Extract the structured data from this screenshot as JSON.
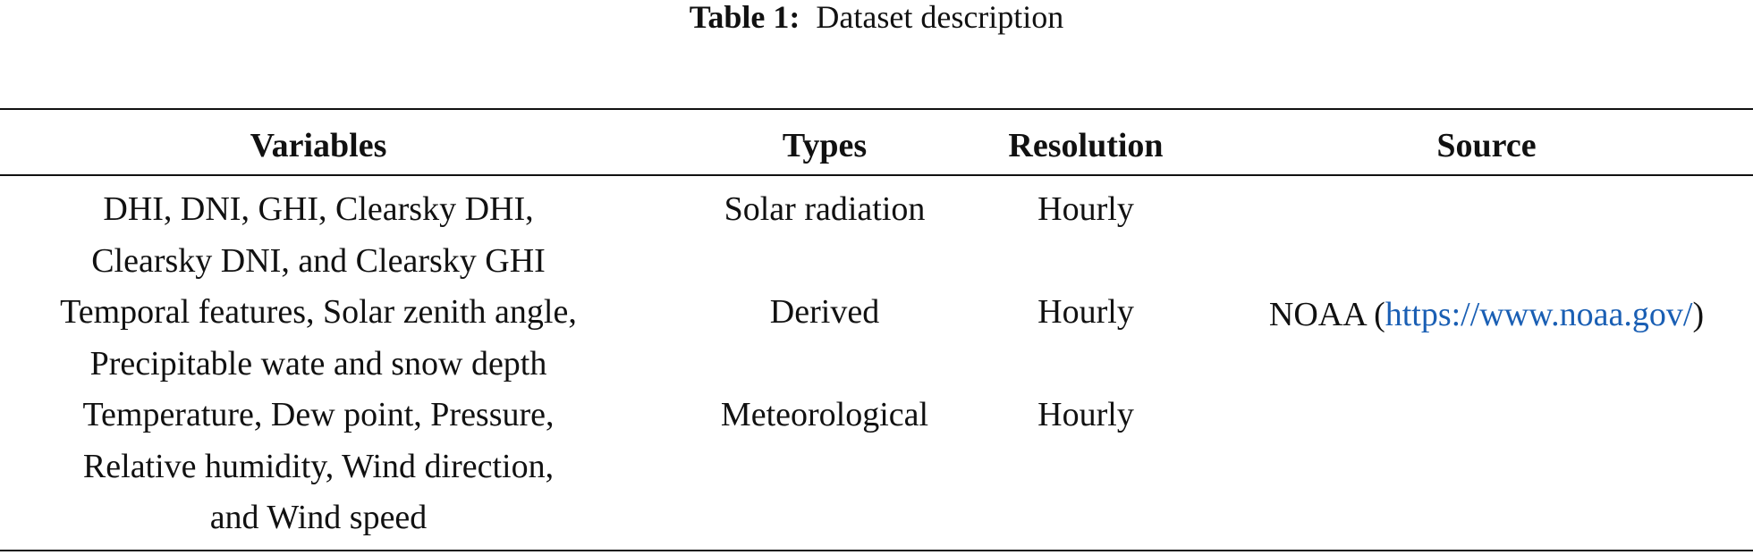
{
  "header": {
    "label": "Table 1:",
    "title": "Dataset description"
  },
  "table": {
    "columns": [
      "Variables",
      "Types",
      "Resolution",
      "Source"
    ],
    "rows": [
      {
        "variables": [
          "DHI, DNI, GHI, Clearsky DHI,",
          "Clearsky DNI, and Clearsky GHI"
        ],
        "type": "Solar radiation",
        "resolution": "Hourly"
      },
      {
        "variables": [
          "Temporal features, Solar zenith angle,",
          "Precipitable wate and snow depth"
        ],
        "type": "Derived",
        "resolution": "Hourly"
      },
      {
        "variables": [
          "Temperature, Dew point, Pressure,",
          "Relative humidity, Wind direction,",
          "and Wind speed"
        ],
        "type": "Meteorological",
        "resolution": "Hourly"
      }
    ],
    "source": [
      "NOAA (",
      "https://www.noaa.gov/",
      ")"
    ]
  }
}
